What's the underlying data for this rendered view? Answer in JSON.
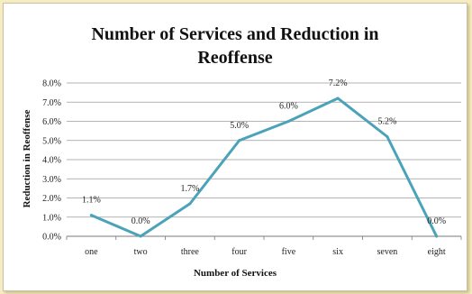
{
  "chart_data": {
    "type": "line",
    "title_line1": "Number of Services and Reduction in",
    "title_line2": "Reoffense",
    "xlabel": "Number of Services",
    "ylabel": "Reduction in Reoffense",
    "categories": [
      "one",
      "two",
      "three",
      "four",
      "five",
      "six",
      "seven",
      "eight"
    ],
    "values": [
      1.1,
      0.0,
      1.7,
      5.0,
      6.0,
      7.2,
      5.2,
      0.0
    ],
    "data_labels": [
      "1.1%",
      "0.0%",
      "1.7%",
      "5.0%",
      "6.0%",
      "7.2%",
      "5.2%",
      "0.0%"
    ],
    "y_ticks": [
      "0.0%",
      "1.0%",
      "2.0%",
      "3.0%",
      "4.0%",
      "5.0%",
      "6.0%",
      "7.0%",
      "8.0%"
    ],
    "ylim": [
      0,
      8
    ],
    "grid": true,
    "line_color": "#4aa3b8"
  }
}
